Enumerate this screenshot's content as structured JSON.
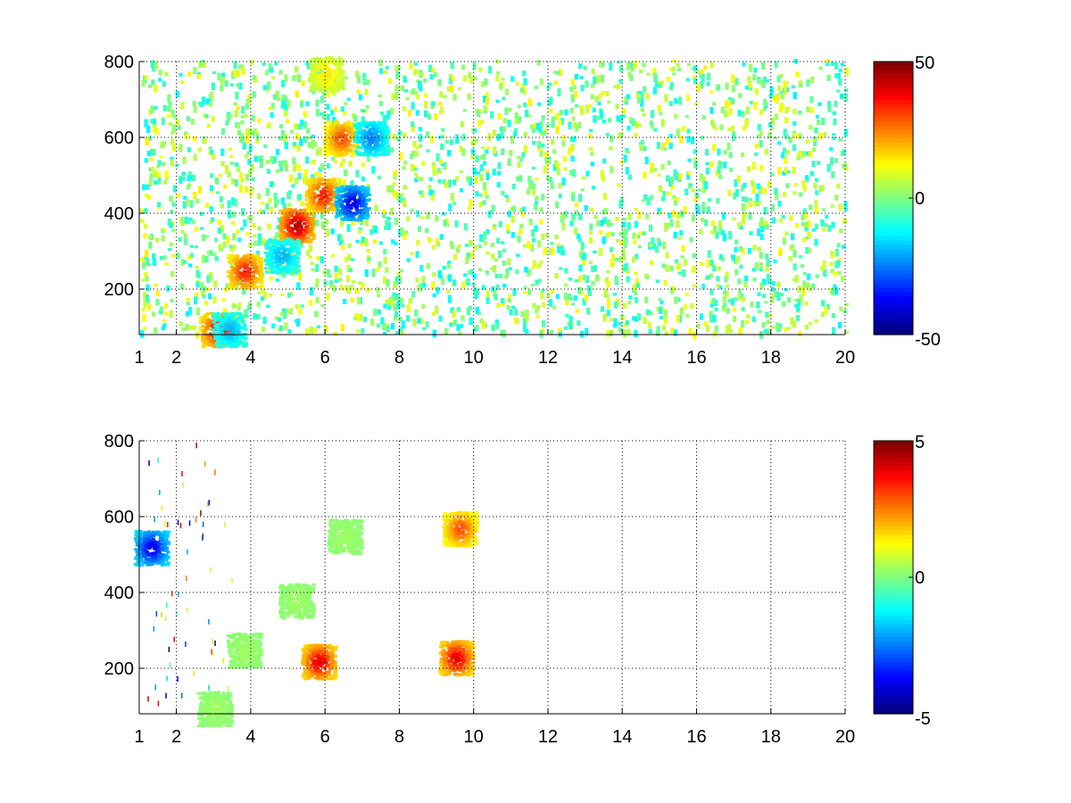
{
  "chart_data": [
    {
      "type": "heatmap",
      "title": "",
      "xlabel": "",
      "ylabel": "",
      "xlim": [
        1,
        20
      ],
      "ylim": [
        80,
        800
      ],
      "x_ticks": [
        "1",
        "2",
        "4",
        "6",
        "8",
        "10",
        "12",
        "14",
        "16",
        "18",
        "20"
      ],
      "x_tick_values": [
        1,
        2,
        4,
        6,
        8,
        10,
        12,
        14,
        16,
        18,
        20
      ],
      "y_ticks": [
        "200",
        "400",
        "600",
        "800"
      ],
      "y_tick_values": [
        200,
        400,
        600,
        800
      ],
      "grid": true,
      "colormap": "jet",
      "colorbar": {
        "min": -50,
        "max": 50,
        "labels": [
          "50",
          "0",
          "-50"
        ],
        "label_values": [
          50,
          0,
          -50
        ]
      },
      "features": [
        {
          "x": 3.1,
          "y": 95,
          "value": 40
        },
        {
          "x": 3.8,
          "y": 250,
          "value": 35
        },
        {
          "x": 5.2,
          "y": 370,
          "value": 45
        },
        {
          "x": 5.9,
          "y": 450,
          "value": 35
        },
        {
          "x": 6.4,
          "y": 600,
          "value": 30
        },
        {
          "x": 6.7,
          "y": 430,
          "value": -40
        },
        {
          "x": 7.2,
          "y": 600,
          "value": -25
        },
        {
          "x": 4.8,
          "y": 290,
          "value": -20
        },
        {
          "x": 3.4,
          "y": 95,
          "value": -20
        },
        {
          "x": 6.0,
          "y": 770,
          "value": 15
        }
      ]
    },
    {
      "type": "heatmap",
      "title": "",
      "xlabel": "",
      "ylabel": "",
      "xlim": [
        1,
        20
      ],
      "ylim": [
        80,
        800
      ],
      "x_ticks": [
        "1",
        "2",
        "4",
        "6",
        "8",
        "10",
        "12",
        "14",
        "16",
        "18",
        "20"
      ],
      "x_tick_values": [
        1,
        2,
        4,
        6,
        8,
        10,
        12,
        14,
        16,
        18,
        20
      ],
      "y_ticks": [
        "200",
        "400",
        "600",
        "800"
      ],
      "y_tick_values": [
        200,
        400,
        600,
        800
      ],
      "grid": true,
      "colormap": "jet",
      "colorbar": {
        "min": -5,
        "max": 5,
        "labels": [
          "5",
          "0",
          "-5"
        ],
        "label_values": [
          5,
          0,
          -5
        ]
      },
      "features": [
        {
          "x": 3.0,
          "y": 95,
          "value": 0.3
        },
        {
          "x": 3.8,
          "y": 250,
          "value": 0.3
        },
        {
          "x": 5.2,
          "y": 380,
          "value": 0.3
        },
        {
          "x": 6.5,
          "y": 550,
          "value": 0.3
        },
        {
          "x": 9.5,
          "y": 230,
          "value": 4
        },
        {
          "x": 9.6,
          "y": 570,
          "value": 3
        },
        {
          "x": 1.3,
          "y": 520,
          "value": -4
        },
        {
          "x": 5.8,
          "y": 220,
          "value": 4
        }
      ]
    }
  ]
}
